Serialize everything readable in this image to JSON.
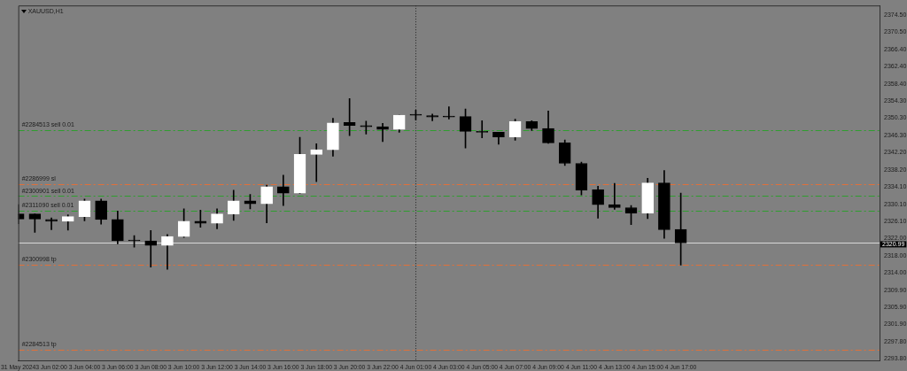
{
  "chart_data": {
    "type": "candlestick",
    "title": "XAUUSD,H1",
    "categories": [
      "31 May 2024",
      null,
      "3 Jun 02:00",
      null,
      "3 Jun 04:00",
      null,
      "3 Jun 06:00",
      null,
      "3 Jun 08:00",
      null,
      "3 Jun 10:00",
      null,
      "3 Jun 12:00",
      null,
      "3 Jun 14:00",
      null,
      "3 Jun 16:00",
      null,
      "3 Jun 18:00",
      null,
      "3 Jun 20:00",
      null,
      "3 Jun 22:00",
      null,
      "4 Jun 01:00",
      null,
      "4 Jun 03:00",
      null,
      "4 Jun 05:00",
      null,
      "4 Jun 07:00",
      null,
      "4 Jun 09:00",
      null,
      "4 Jun 11:00",
      null,
      "4 Jun 13:00",
      null,
      "4 Jun 15:00",
      null,
      "4 Jun 17:00",
      null,
      null,
      null,
      null,
      null,
      null,
      null,
      null,
      null,
      null,
      null,
      null
    ],
    "ohlc": [
      [
        2327.8,
        2330.0,
        2325.5,
        2326.6
      ],
      [
        2327.8,
        2327.8,
        2323.5,
        2326.6
      ],
      [
        2326.5,
        2326.9,
        2324.1,
        2326.1
      ],
      [
        2326.1,
        2327.6,
        2324.0,
        2327.2
      ],
      [
        2327.2,
        2331.3,
        2326.2,
        2330.9
      ],
      [
        2330.9,
        2331.3,
        2325.4,
        2326.5
      ],
      [
        2326.5,
        2328.5,
        2320.8,
        2321.5
      ],
      [
        2321.5,
        2322.7,
        2320.0,
        2321.5
      ],
      [
        2321.5,
        2323.9,
        2315.3,
        2320.4
      ],
      [
        2320.4,
        2323.0,
        2314.8,
        2322.5
      ],
      [
        2322.5,
        2329.0,
        2322.3,
        2326.1
      ],
      [
        2326.1,
        2328.7,
        2324.7,
        2325.6
      ],
      [
        2325.6,
        2329.0,
        2324.3,
        2327.8
      ],
      [
        2327.8,
        2333.4,
        2326.3,
        2330.9
      ],
      [
        2330.9,
        2332.4,
        2329.0,
        2330.2
      ],
      [
        2330.2,
        2334.6,
        2325.7,
        2334.2
      ],
      [
        2334.2,
        2336.9,
        2329.8,
        2332.7
      ],
      [
        2332.7,
        2345.8,
        2332.6,
        2341.8
      ],
      [
        2341.8,
        2344.3,
        2335.4,
        2342.9
      ],
      [
        2342.9,
        2350.3,
        2341.4,
        2349.2
      ],
      [
        2349.3,
        2354.9,
        2346.2,
        2348.6
      ],
      [
        2348.6,
        2349.6,
        2346.6,
        2348.3
      ],
      [
        2348.3,
        2349.1,
        2344.8,
        2347.7
      ],
      [
        2347.7,
        2351.0,
        2347.0,
        2351.0
      ],
      [
        2351.0,
        2352.2,
        2349.9,
        2351.0
      ],
      [
        2350.9,
        2351.3,
        2349.7,
        2350.6
      ],
      [
        2350.6,
        2353.0,
        2350.1,
        2350.6
      ],
      [
        2350.7,
        2352.5,
        2343.3,
        2347.2
      ],
      [
        2347.2,
        2349.7,
        2345.7,
        2347.0
      ],
      [
        2347.0,
        2347.0,
        2344.2,
        2345.9
      ],
      [
        2345.9,
        2350.1,
        2345.1,
        2349.5
      ],
      [
        2349.5,
        2349.7,
        2347.4,
        2347.9
      ],
      [
        2347.9,
        2352.0,
        2344.4,
        2344.5
      ],
      [
        2344.5,
        2345.2,
        2339.2,
        2339.7
      ],
      [
        2339.7,
        2340.0,
        2332.3,
        2333.4
      ],
      [
        2333.5,
        2334.3,
        2326.8,
        2330.0
      ],
      [
        2330.0,
        2335.0,
        2328.9,
        2329.3
      ],
      [
        2329.3,
        2329.8,
        2325.3,
        2328.0
      ],
      [
        2328.0,
        2336.2,
        2326.7,
        2335.1
      ],
      [
        2335.1,
        2338.0,
        2322.1,
        2324.1
      ],
      [
        2324.2,
        2332.7,
        2315.8,
        2321.0
      ],
      null,
      null,
      null,
      null,
      null,
      null,
      null,
      null,
      null,
      null,
      null,
      null
    ],
    "colors": [
      "#000000",
      "#000000",
      "#000000",
      "#ffffff",
      "#ffffff",
      "#000000",
      "#000000",
      "#000000",
      "#000000",
      "#ffffff",
      "#ffffff",
      "#000000",
      "#ffffff",
      "#ffffff",
      "#000000",
      "#ffffff",
      "#000000",
      "#ffffff",
      "#ffffff",
      "#ffffff",
      "#000000",
      "#000000",
      "#000000",
      "#ffffff",
      "#000000",
      "#000000",
      "#000000",
      "#000000",
      "#000000",
      "#000000",
      "#ffffff",
      "#000000",
      "#000000",
      "#000000",
      "#000000",
      "#000000",
      "#000000",
      "#000000",
      "#ffffff",
      "#000000",
      "#000000",
      null,
      null,
      null,
      null,
      null,
      null,
      null,
      null,
      null,
      null,
      null,
      null
    ],
    "ylim": [
      2293.4,
      2376.8
    ],
    "yticks": [
      {
        "value": 2374.5,
        "label": "2374.50"
      },
      {
        "value": 2370.5,
        "label": "2370.50"
      },
      {
        "value": 2366.4,
        "label": "2366.40"
      },
      {
        "value": 2362.4,
        "label": "2362.40"
      },
      {
        "value": 2358.4,
        "label": "2358.40"
      },
      {
        "value": 2354.3,
        "label": "2354.30"
      },
      {
        "value": 2350.3,
        "label": "2350.30"
      },
      {
        "value": 2346.3,
        "label": "2346.30"
      },
      {
        "value": 2342.2,
        "label": "2342.20"
      },
      {
        "value": 2338.2,
        "label": "2338.20"
      },
      {
        "value": 2334.1,
        "label": "2334.10"
      },
      {
        "value": 2330.1,
        "label": "2330.10"
      },
      {
        "value": 2326.1,
        "label": "2326.10"
      },
      {
        "value": 2322.0,
        "label": "2322.00"
      },
      {
        "value": 2318.0,
        "label": "2318.00"
      },
      {
        "value": 2314.0,
        "label": "2314.00"
      },
      {
        "value": 2309.9,
        "label": "2309.90"
      },
      {
        "value": 2305.9,
        "label": "2305.90"
      },
      {
        "value": 2301.9,
        "label": "2301.90"
      },
      {
        "value": 2297.8,
        "label": "2297.80"
      },
      {
        "value": 2293.8,
        "label": "2293.80"
      }
    ],
    "ref_lines": [
      {
        "axis": "y",
        "value": 2347.5,
        "label": "#2284513 sell 0.01",
        "color": "#2e9e2e",
        "line_style": "dashed"
      },
      {
        "axis": "y",
        "value": 2334.8,
        "label": "#2286999 sl",
        "color": "#e0703a",
        "line_style": "dashed"
      },
      {
        "axis": "y",
        "value": 2332.0,
        "label": "#2300901 sell 0.01",
        "color": "#2e9e2e",
        "line_style": "dashed"
      },
      {
        "axis": "y",
        "value": 2328.6,
        "label": "#2311090 sell 0.01",
        "color": "#2e9e2e",
        "line_style": "dashed"
      },
      {
        "axis": "y",
        "value": 2320.99,
        "label": "2320.99",
        "color": "#d8d8d8",
        "line_style": "solid"
      },
      {
        "axis": "y",
        "value": 2315.9,
        "label": "#2300998 tp",
        "color": "#e0703a",
        "line_style": "dashed"
      },
      {
        "axis": "y",
        "value": 2295.9,
        "label": "#2284513 tp",
        "color": "#e0703a",
        "line_style": "dashed"
      },
      {
        "axis": "x",
        "value": "4 Jun 01:00",
        "color": "#202020",
        "line_style": "dotted"
      }
    ],
    "grid": false,
    "legend": false
  }
}
